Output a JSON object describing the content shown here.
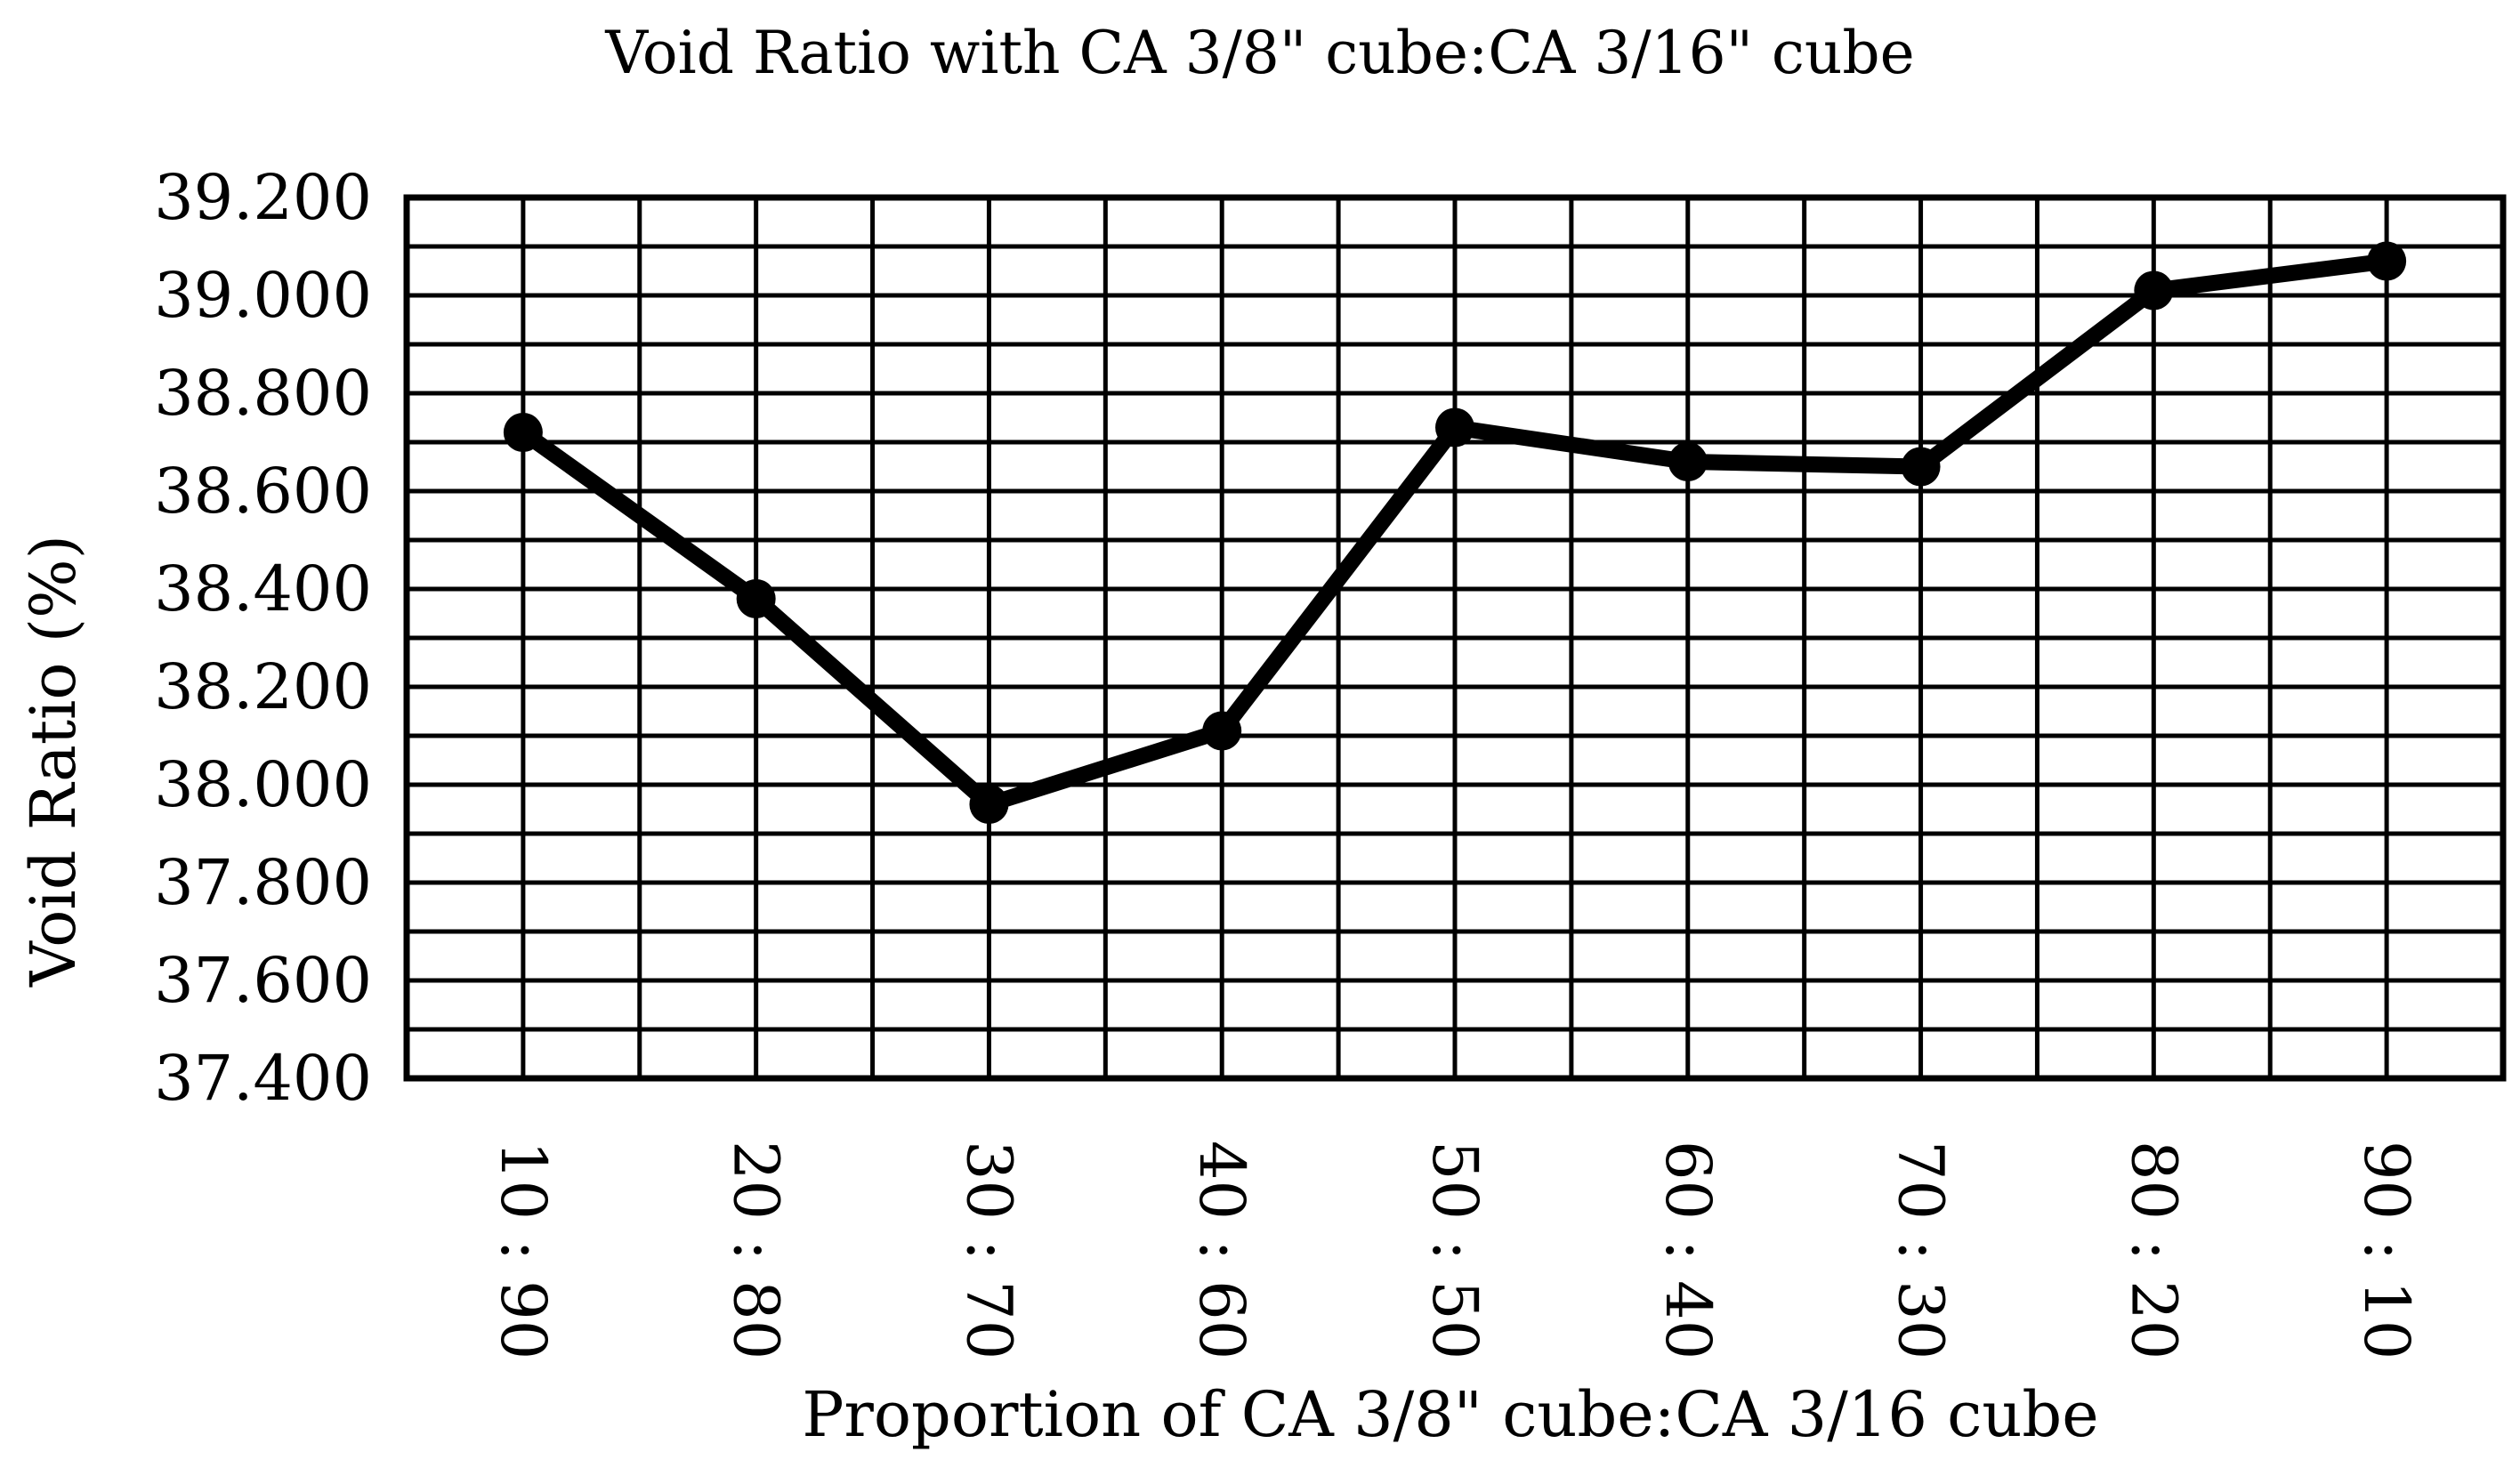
{
  "chart_data": {
    "type": "line",
    "title": "Void Ratio with CA 3/8\" cube:CA 3/16\" cube",
    "xlabel": "Proportion of CA 3/8\" cube:CA 3/16 cube",
    "ylabel": "Void Ratio (%)",
    "categories": [
      "10 : 90",
      "20 : 80",
      "30 : 70",
      "40 : 60",
      "50 : 50",
      "60 : 40",
      "70 : 30",
      "80 : 20",
      "90 : 10"
    ],
    "series": [
      {
        "values": [
          38.72,
          38.38,
          37.96,
          38.11,
          38.73,
          38.66,
          38.65,
          39.01,
          39.07
        ]
      }
    ],
    "ylim": [
      37.4,
      39.2
    ],
    "yticks": [
      37.4,
      37.6,
      37.8,
      38.0,
      38.2,
      38.4,
      38.6,
      38.8,
      39.0,
      39.2
    ],
    "ytick_labels": [
      "37.400",
      "37.600",
      "37.800",
      "38.000",
      "38.200",
      "38.400",
      "38.600",
      "38.800",
      "39.000",
      "39.200"
    ],
    "grid": true,
    "legend": "none",
    "colors": {
      "series": "#000000",
      "grid": "#000000"
    }
  }
}
